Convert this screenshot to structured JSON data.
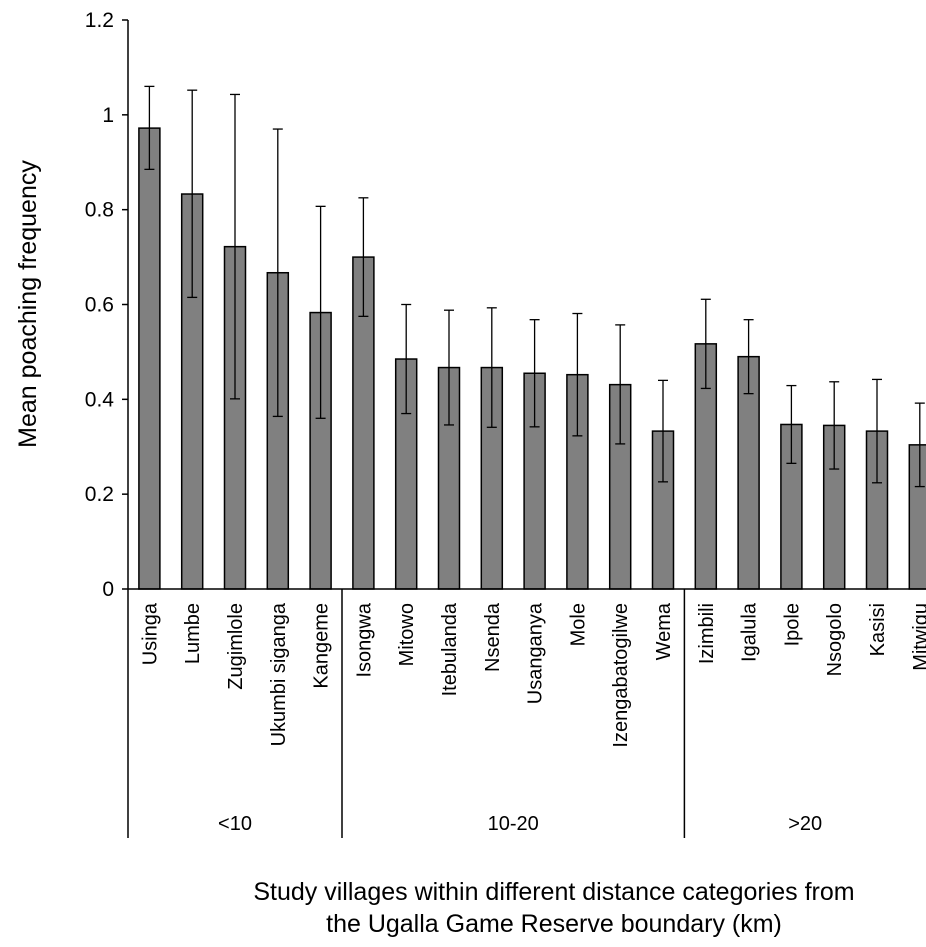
{
  "chart_data": {
    "type": "bar",
    "ylabel": "Mean poaching frequency",
    "xlabel_lines": [
      "Study villages within different distance categories from",
      "the Ugalla Game Reserve boundary (km)"
    ],
    "ylim": [
      0,
      1.2
    ],
    "yticks": [
      "0",
      "0.2",
      "0.4",
      "0.6",
      "0.8",
      "1",
      "1.2"
    ],
    "grid": false,
    "bar_color": "#808080",
    "categories": [
      "Usinga",
      "Lumbe",
      "Zugimlole",
      "Ukumbi siganga",
      "Kangeme",
      "Isongwa",
      "Mitowo",
      "Itebulanda",
      "Nsenda",
      "Usanganya",
      "Mole",
      "Izengabatogilwe",
      "Wema",
      "Izimbili",
      "Igalula",
      "Ipole",
      "Nsogolo",
      "Kasisi",
      "Mitwigu"
    ],
    "values": [
      0.972,
      0.833,
      0.722,
      0.667,
      0.583,
      0.7,
      0.485,
      0.467,
      0.467,
      0.455,
      0.452,
      0.431,
      0.333,
      0.517,
      0.49,
      0.347,
      0.345,
      0.333,
      0.304
    ],
    "error_upper": [
      1.06,
      1.052,
      1.043,
      0.97,
      0.807,
      0.825,
      0.6,
      0.588,
      0.593,
      0.568,
      0.581,
      0.557,
      0.44,
      0.611,
      0.568,
      0.429,
      0.437,
      0.442,
      0.392
    ],
    "error_lower": [
      0.885,
      0.615,
      0.401,
      0.364,
      0.36,
      0.575,
      0.37,
      0.346,
      0.341,
      0.342,
      0.323,
      0.306,
      0.226,
      0.423,
      0.412,
      0.265,
      0.253,
      0.224,
      0.216
    ],
    "groups": [
      {
        "label": "<10",
        "count": 5
      },
      {
        "label": "10-20",
        "count": 8
      },
      {
        "label": ">20",
        "count": 6
      }
    ]
  }
}
